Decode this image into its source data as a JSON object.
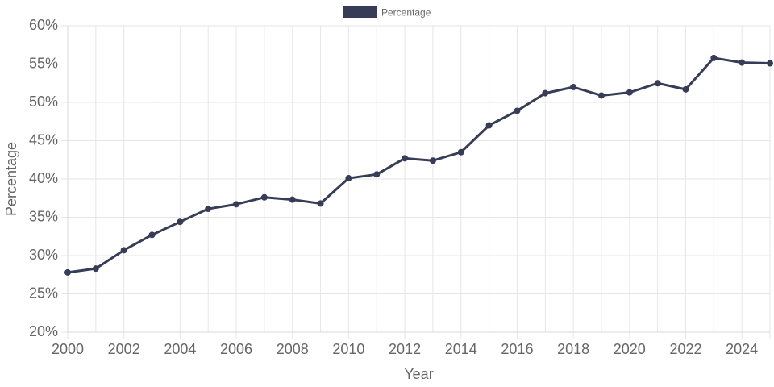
{
  "chart_data": {
    "type": "line",
    "title": "",
    "xlabel": "Year",
    "ylabel": "Percentage",
    "legend": {
      "position": "top-center",
      "entries": [
        "Percentage"
      ]
    },
    "grid": true,
    "xlim": [
      2000,
      2025
    ],
    "ylim": [
      20,
      60
    ],
    "x_ticks": [
      "2000",
      "2002",
      "2004",
      "2006",
      "2008",
      "2010",
      "2012",
      "2014",
      "2016",
      "2018",
      "2020",
      "2022",
      "2024"
    ],
    "y_ticks": [
      "20%",
      "25%",
      "30%",
      "35%",
      "40%",
      "45%",
      "50%",
      "55%",
      "60%"
    ],
    "x": [
      2000,
      2001,
      2002,
      2003,
      2004,
      2005,
      2006,
      2007,
      2008,
      2009,
      2010,
      2011,
      2012,
      2013,
      2014,
      2015,
      2016,
      2017,
      2018,
      2019,
      2020,
      2021,
      2022,
      2023,
      2024,
      2025
    ],
    "series": [
      {
        "name": "Percentage",
        "color": "#373c57",
        "values": [
          27.8,
          28.3,
          30.7,
          32.7,
          34.4,
          36.1,
          36.7,
          37.6,
          37.3,
          36.8,
          40.1,
          40.6,
          42.7,
          42.4,
          43.5,
          47.0,
          48.9,
          51.2,
          52.0,
          50.9,
          51.3,
          52.5,
          51.7,
          55.8,
          55.2,
          55.1
        ]
      }
    ]
  }
}
